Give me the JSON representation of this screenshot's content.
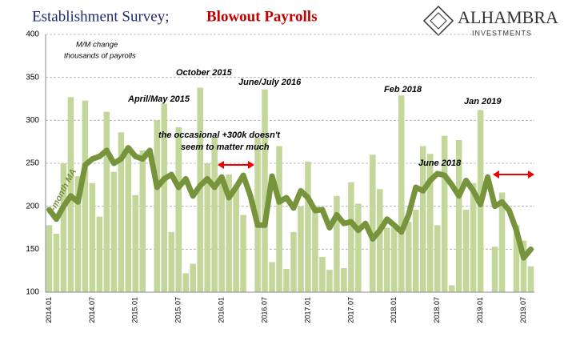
{
  "chart_data": {
    "type": "bar",
    "title": "Establishment Survey;",
    "title_highlight": "Blowout Payrolls",
    "brand": "ALHAMBRA",
    "brand_sub": "INVESTMENTS",
    "subtitle": "M/M change",
    "subtitle2": "thousands of payrolls",
    "annotations": [
      "October 2015",
      "April/May 2015",
      "June/July 2016",
      "Feb 2018",
      "Jan 2019",
      "June 2018",
      "the occasional +300k doesn't",
      "seem to matter much"
    ],
    "categories": [
      "2014.01",
      null,
      null,
      null,
      null,
      null,
      "2014.07",
      null,
      null,
      null,
      null,
      null,
      "2015.01",
      null,
      null,
      null,
      null,
      null,
      "2015.07",
      null,
      null,
      null,
      null,
      null,
      "2016.01",
      null,
      null,
      null,
      null,
      null,
      "2016.07",
      null,
      null,
      null,
      null,
      null,
      "2017.01",
      null,
      null,
      null,
      null,
      null,
      "2017.07",
      null,
      null,
      null,
      null,
      null,
      "2018.01",
      null,
      null,
      null,
      null,
      null,
      "2018.07",
      null,
      null,
      null,
      null,
      null,
      "2019.01",
      null,
      null,
      null,
      null,
      null,
      "2019.07",
      null
    ],
    "series": [
      {
        "name": "M/M change",
        "color": "#c4d79b",
        "values": [
          178,
          168,
          250,
          327,
          235,
          323,
          227,
          188,
          310,
          240,
          286,
          270,
          213,
          265,
          95,
          300,
          319,
          170,
          292,
          122,
          133,
          338,
          250,
          280,
          235,
          237,
          225,
          190,
          95,
          280,
          336,
          135,
          270,
          127,
          170,
          200,
          252,
          200,
          141,
          126,
          212,
          128,
          228,
          203,
          98,
          260,
          220,
          175,
          175,
          329,
          182,
          196,
          270,
          261,
          178,
          282,
          108,
          277,
          196,
          227,
          312,
          95,
          153,
          216,
          98,
          178,
          160,
          130
        ]
      },
      {
        "name": "6-month MA",
        "color": "#77933c",
        "values": [
          196,
          185,
          200,
          212,
          205,
          248,
          255,
          258,
          265,
          250,
          255,
          268,
          258,
          255,
          265,
          222,
          232,
          237,
          222,
          232,
          212,
          224,
          232,
          222,
          234,
          210,
          222,
          236,
          212,
          178,
          178,
          235,
          205,
          210,
          198,
          218,
          210,
          195,
          196,
          175,
          190,
          180,
          182,
          172,
          180,
          162,
          172,
          185,
          178,
          170,
          190,
          222,
          218,
          230,
          238,
          236,
          225,
          212,
          230,
          218,
          202,
          234,
          200,
          205,
          195,
          172,
          140,
          150
        ]
      }
    ],
    "ylim": [
      100,
      400
    ],
    "yticks": [
      100,
      150,
      200,
      250,
      300,
      350,
      400
    ],
    "grid": true
  }
}
